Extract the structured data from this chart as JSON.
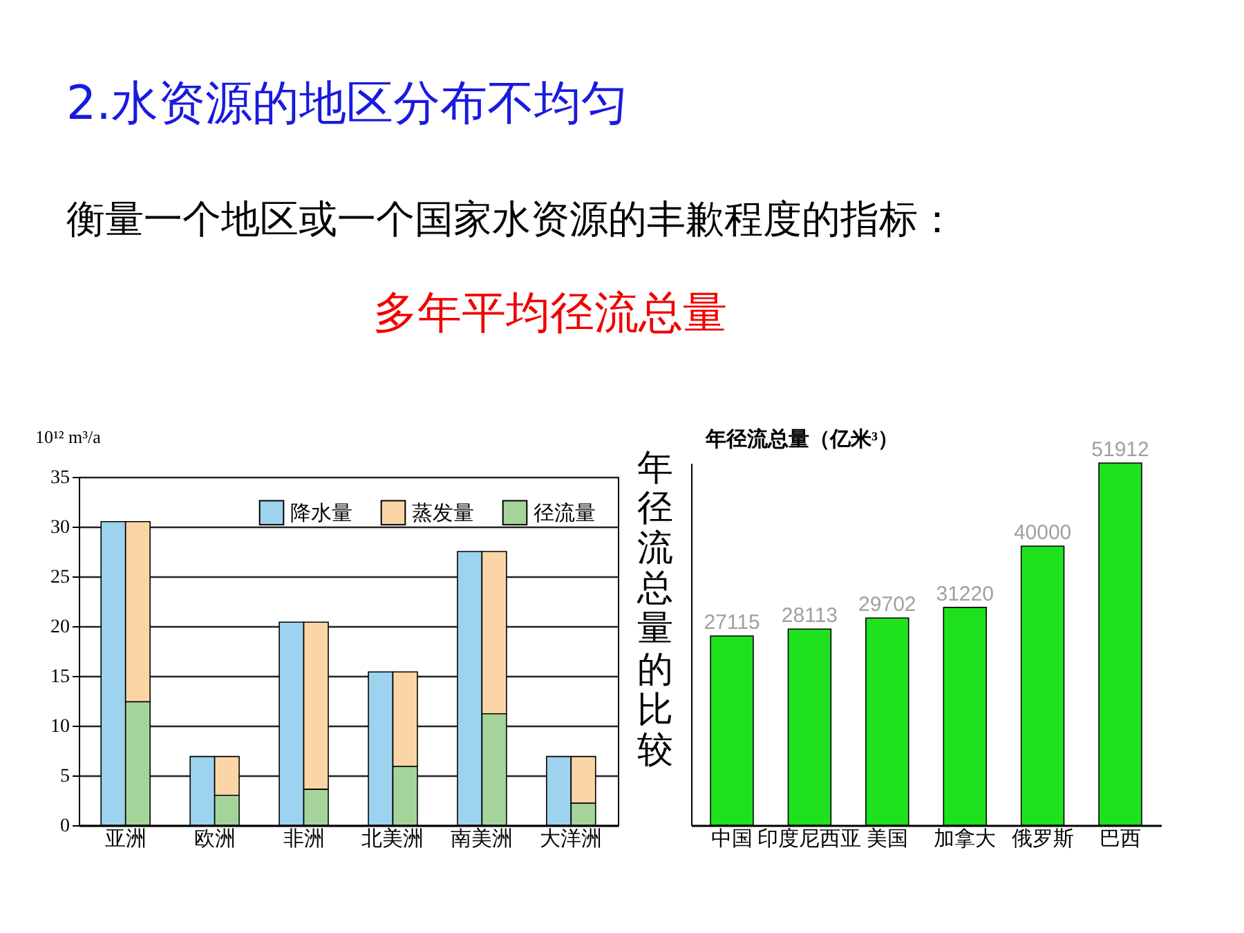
{
  "chart_data": [
    {
      "type": "bar",
      "title": "2.水资源的地区分布不均匀",
      "subtitle": "衡量一个地区或一个国家水资源的丰歉程度的指标：",
      "annotations": [
        "多年平均径流总量"
      ],
      "ylabel": "10¹² m³/a",
      "categories": [
        "亚洲",
        "欧洲",
        "非洲",
        "北美洲",
        "南美洲",
        "大洋洲"
      ],
      "series": [
        {
          "name": "降水量",
          "color": "#9dd3ee",
          "values": [
            30.5,
            6.9,
            20.4,
            15.4,
            27.5,
            6.9
          ]
        },
        {
          "name": "蒸发量",
          "color": "#fcd5a6",
          "values": [
            18.1,
            3.9,
            16.8,
            9.5,
            16.3,
            4.7
          ],
          "base": [
            12.4,
            3.0,
            3.6,
            5.9,
            11.2,
            2.2
          ]
        },
        {
          "name": "径流量",
          "color": "#a5d49b",
          "values": [
            12.4,
            3.0,
            3.6,
            5.9,
            11.2,
            2.2
          ]
        }
      ],
      "ylim": [
        0,
        35
      ],
      "yticks": [
        0,
        5,
        10,
        15,
        20,
        25,
        30,
        35
      ],
      "grid": "y",
      "legend": "top right"
    },
    {
      "type": "bar",
      "title": "年径流总量的比较",
      "ylabel": "年径流总量（亿米³）",
      "categories": [
        "中国",
        "印度尼西亚",
        "美国",
        "加拿大",
        "俄罗斯",
        "巴西"
      ],
      "values": [
        27115,
        28113,
        29702,
        31220,
        40000,
        51912
      ],
      "color": "#1fe21f",
      "data_labels": true,
      "tick_labels": "x"
    }
  ]
}
